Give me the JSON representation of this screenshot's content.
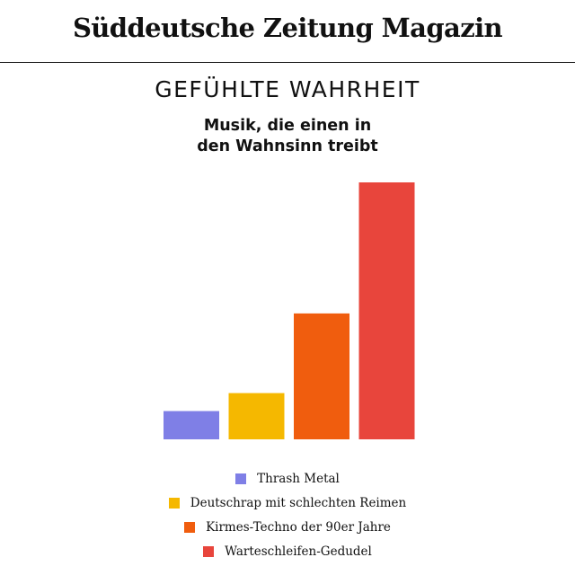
{
  "brand": {
    "logo_text": "Süddeutsche Zeitung Magazin"
  },
  "chart_data": {
    "type": "bar",
    "title": "GEFÜHLTE WAHRHEIT",
    "subtitle_lines": [
      "Musik, die einen in",
      "den Wahnsinn treibt"
    ],
    "categories": [
      "Thrash Metal",
      "Deutschrap mit schlechten Reimen",
      "Kirmes-Techno der 90er Jahre",
      "Warteschleifen-Gedudel"
    ],
    "values": [
      11,
      18,
      49,
      100
    ],
    "ylim": [
      0,
      100
    ],
    "axes_visible": false,
    "grid": false,
    "legend_position": "bottom",
    "colors": [
      "#7f7fe6",
      "#f5b800",
      "#f05d0e",
      "#e8453c"
    ]
  }
}
